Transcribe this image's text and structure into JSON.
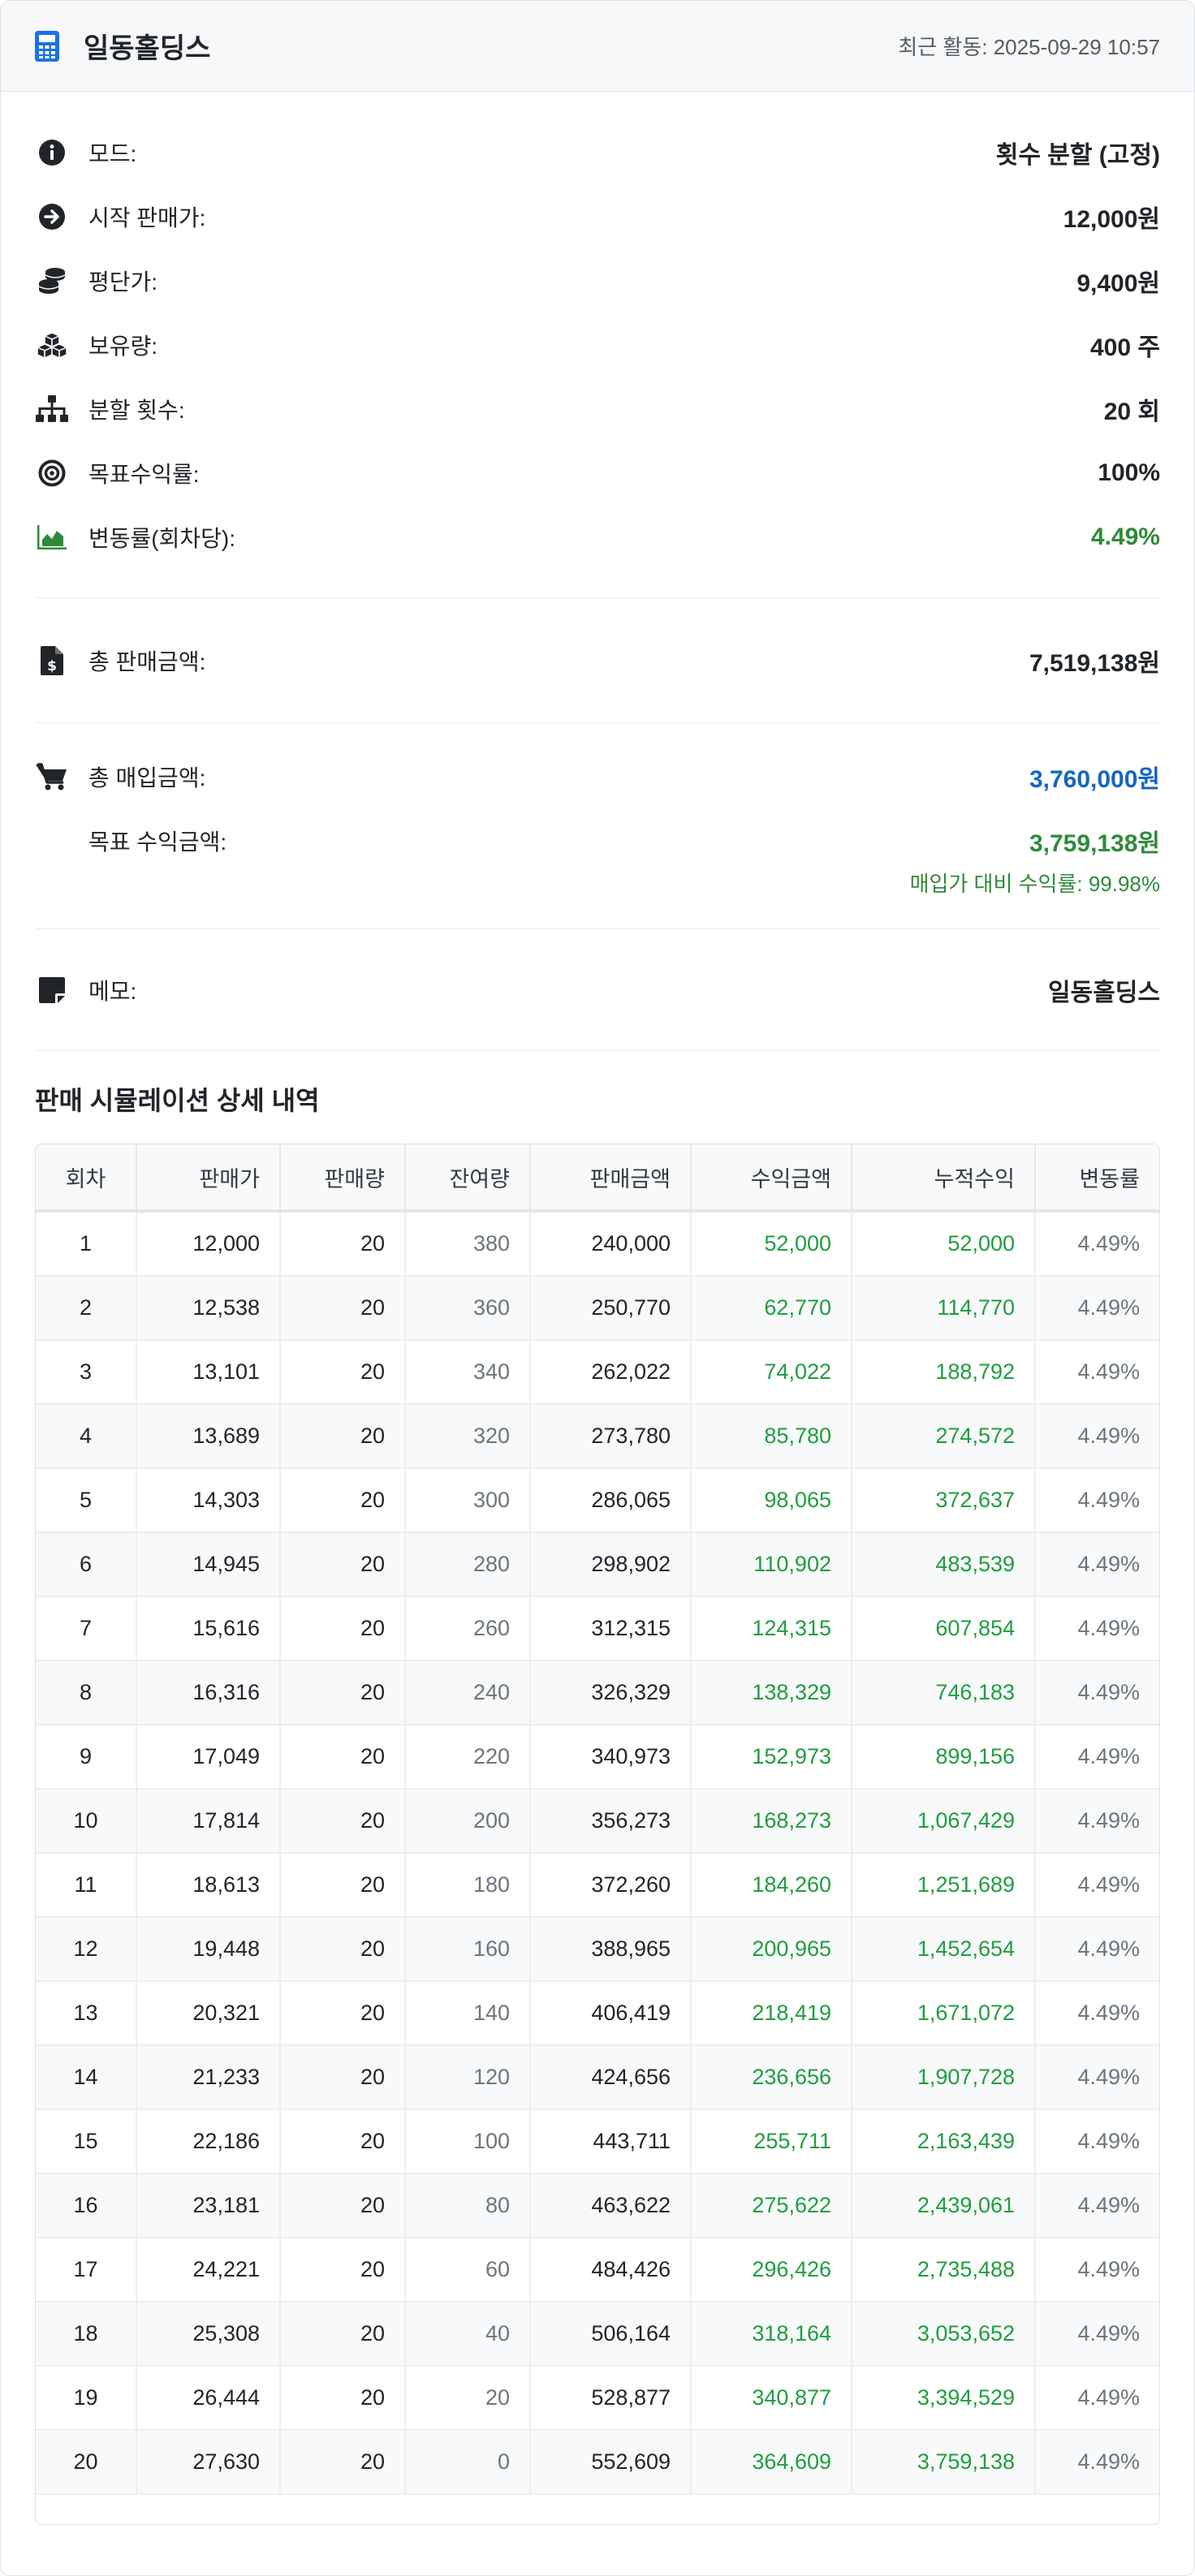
{
  "header": {
    "title": "일동홀딩스",
    "activity": "최근 활동: 2025-09-29 10:57"
  },
  "info": [
    {
      "icon": "info-circle-icon",
      "label": "모드:",
      "value": "횟수 분할 (고정)"
    },
    {
      "icon": "arrow-right-circle-icon",
      "label": "시작 판매가:",
      "value": "12,000원"
    },
    {
      "icon": "coins-icon",
      "label": "평단가:",
      "value": "9,400원"
    },
    {
      "icon": "cubes-icon",
      "label": "보유량:",
      "value": "400 주"
    },
    {
      "icon": "sitemap-icon",
      "label": "분할 횟수:",
      "value": "20 회"
    },
    {
      "icon": "target-icon",
      "label": "목표수익률:",
      "value": "100%"
    },
    {
      "icon": "area-chart-icon",
      "label": "변동률(회차당):",
      "value": "4.49%"
    }
  ],
  "totals": {
    "sales_label": "총 판매금액:",
    "sales_value": "7,519,138원",
    "purchase_label": "총 매입금액:",
    "purchase_value": "3,760,000원",
    "target_label": "목표 수익금액:",
    "target_value": "3,759,138원",
    "return_note": "매입가 대비 수익률: 99.98%"
  },
  "memo": {
    "label": "메모:",
    "value": "일동홀딩스"
  },
  "table": {
    "title": "판매 시뮬레이션 상세 내역",
    "headers": [
      "회차",
      "판매가",
      "판매량",
      "잔여량",
      "판매금액",
      "수익금액",
      "누적수익",
      "변동률"
    ],
    "rows": [
      [
        "1",
        "12,000",
        "20",
        "380",
        "240,000",
        "52,000",
        "52,000",
        "4.49%"
      ],
      [
        "2",
        "12,538",
        "20",
        "360",
        "250,770",
        "62,770",
        "114,770",
        "4.49%"
      ],
      [
        "3",
        "13,101",
        "20",
        "340",
        "262,022",
        "74,022",
        "188,792",
        "4.49%"
      ],
      [
        "4",
        "13,689",
        "20",
        "320",
        "273,780",
        "85,780",
        "274,572",
        "4.49%"
      ],
      [
        "5",
        "14,303",
        "20",
        "300",
        "286,065",
        "98,065",
        "372,637",
        "4.49%"
      ],
      [
        "6",
        "14,945",
        "20",
        "280",
        "298,902",
        "110,902",
        "483,539",
        "4.49%"
      ],
      [
        "7",
        "15,616",
        "20",
        "260",
        "312,315",
        "124,315",
        "607,854",
        "4.49%"
      ],
      [
        "8",
        "16,316",
        "20",
        "240",
        "326,329",
        "138,329",
        "746,183",
        "4.49%"
      ],
      [
        "9",
        "17,049",
        "20",
        "220",
        "340,973",
        "152,973",
        "899,156",
        "4.49%"
      ],
      [
        "10",
        "17,814",
        "20",
        "200",
        "356,273",
        "168,273",
        "1,067,429",
        "4.49%"
      ],
      [
        "11",
        "18,613",
        "20",
        "180",
        "372,260",
        "184,260",
        "1,251,689",
        "4.49%"
      ],
      [
        "12",
        "19,448",
        "20",
        "160",
        "388,965",
        "200,965",
        "1,452,654",
        "4.49%"
      ],
      [
        "13",
        "20,321",
        "20",
        "140",
        "406,419",
        "218,419",
        "1,671,072",
        "4.49%"
      ],
      [
        "14",
        "21,233",
        "20",
        "120",
        "424,656",
        "236,656",
        "1,907,728",
        "4.49%"
      ],
      [
        "15",
        "22,186",
        "20",
        "100",
        "443,711",
        "255,711",
        "2,163,439",
        "4.49%"
      ],
      [
        "16",
        "23,181",
        "20",
        "80",
        "463,622",
        "275,622",
        "2,439,061",
        "4.49%"
      ],
      [
        "17",
        "24,221",
        "20",
        "60",
        "484,426",
        "296,426",
        "2,735,488",
        "4.49%"
      ],
      [
        "18",
        "25,308",
        "20",
        "40",
        "506,164",
        "318,164",
        "3,053,652",
        "4.49%"
      ],
      [
        "19",
        "26,444",
        "20",
        "20",
        "528,877",
        "340,877",
        "3,394,529",
        "4.49%"
      ],
      [
        "20",
        "27,630",
        "20",
        "0",
        "552,609",
        "364,609",
        "3,759,138",
        "4.49%"
      ]
    ]
  },
  "colors": {
    "accent_blue": "#1565c0",
    "green": "#2e8b3a",
    "table_green": "#1e9e3e",
    "calculator_icon": "#1a73e8"
  }
}
